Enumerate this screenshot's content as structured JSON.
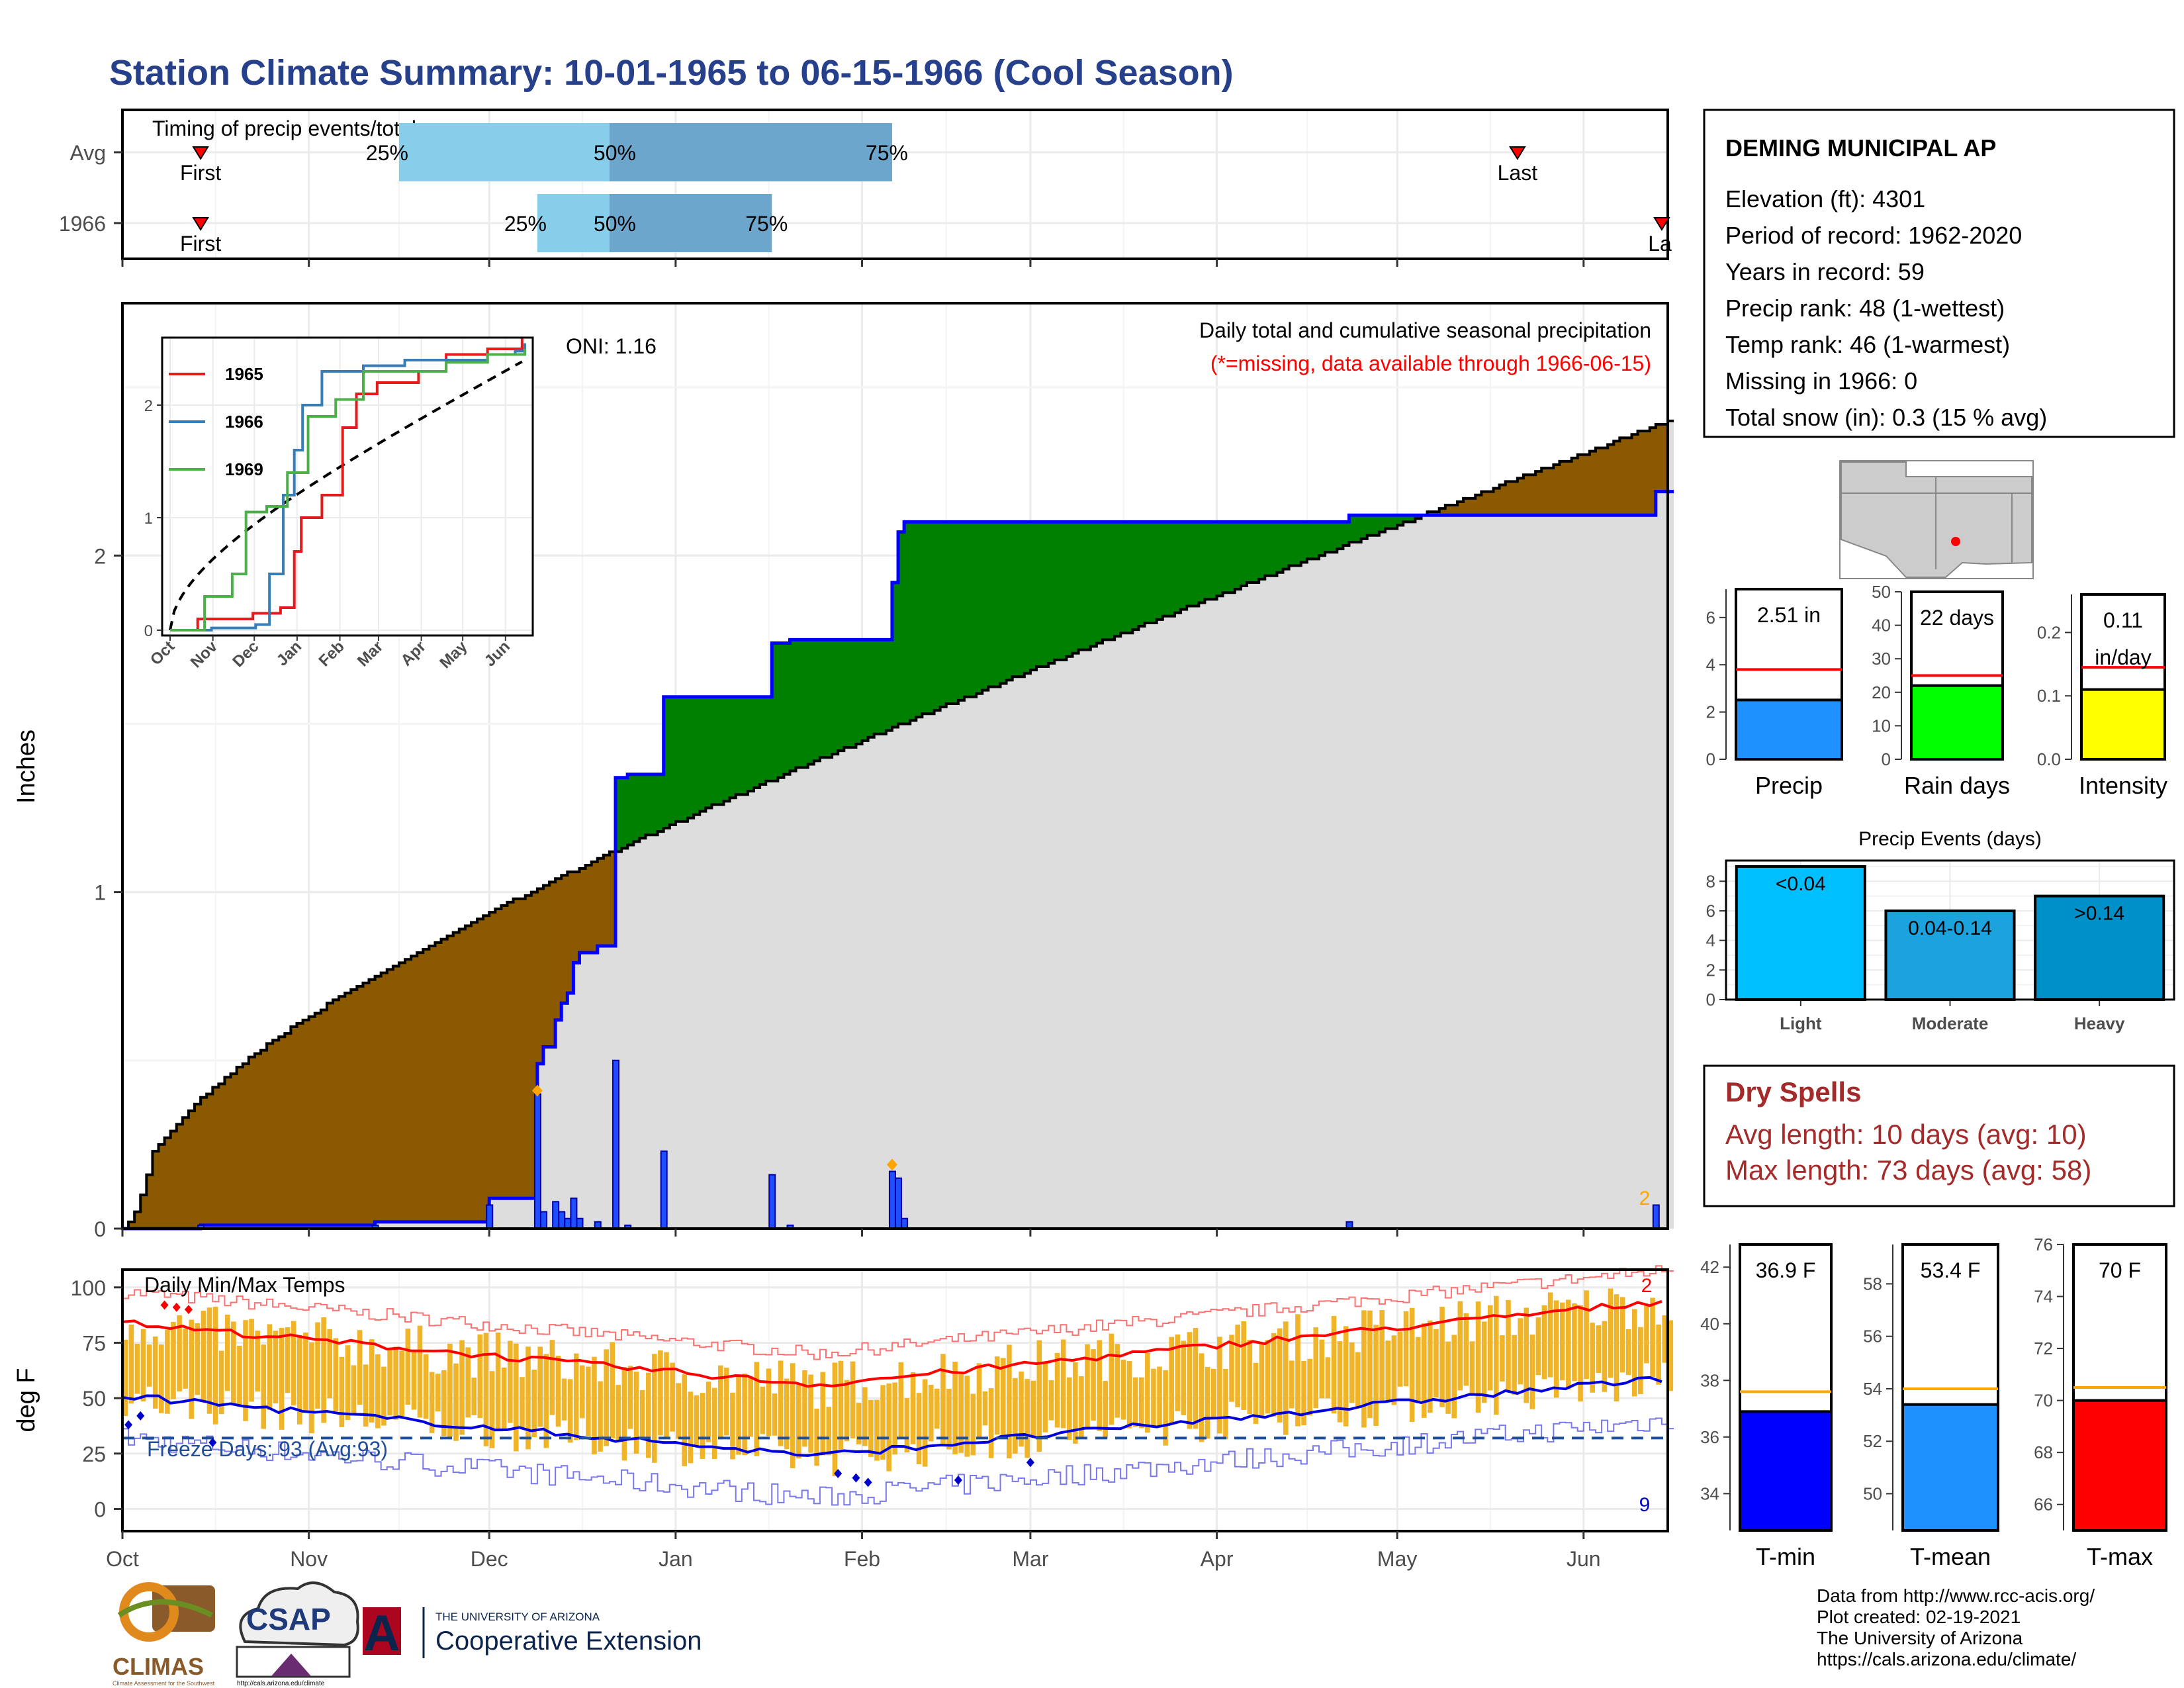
{
  "title": "Station Climate Summary: 10-01-1965 to 06-15-1966 (Cool Season)",
  "timing": {
    "title": "Timing of precip events/totals",
    "rows": [
      {
        "label": "Avg",
        "first_label": "First",
        "last_label": "Last",
        "first_date": "1965-10-14",
        "last_date": "1966-05-21",
        "p25": "1965-11-16",
        "p50": "1965-12-21",
        "p75": "1966-02-06",
        "p25_label": "25%",
        "p50_label": "50%",
        "p75_label": "75%"
      },
      {
        "label": "1966",
        "first_label": "First",
        "last_label": "La",
        "first_date": "1965-10-14",
        "last_date": "1966-06-14",
        "p25": "1965-12-09",
        "p50": "1965-12-21",
        "p75": "1966-01-17",
        "p25_label": "25%",
        "p50_label": "50%",
        "p75_label": "75%"
      }
    ]
  },
  "precip_panel": {
    "ylabel": "Inches",
    "yticks": [
      0,
      1,
      2
    ],
    "ylim": [
      0,
      2.75
    ],
    "oni": "ONI: 1.16",
    "note1": "Daily total and cumulative seasonal precipitation",
    "note2": "(*=missing, data available through 1966-06-15)",
    "corner_label": "2",
    "colors": {
      "above": "#008000",
      "below": "#8B5A00",
      "avg_fill": "#DDDDDD",
      "obs": "#0000FF",
      "bars": "#1E4FFF",
      "marker": "#FFA500"
    }
  },
  "inset": {
    "legend": [
      "1965",
      "1966",
      "1969"
    ],
    "legend_colors": [
      "#E41A1C",
      "#377EB8",
      "#4DAF4A"
    ],
    "months": [
      "Oct",
      "Nov",
      "Dec",
      "Jan",
      "Feb",
      "Mar",
      "Apr",
      "May",
      "Jun"
    ],
    "yticks": [
      0,
      1,
      2
    ],
    "ylim": [
      0,
      2.6
    ]
  },
  "temp_panel": {
    "ylabel": "deg F",
    "title": "Daily Min/Max Temps",
    "freeze_label": "Freeze Days: 93 (Avg:93)",
    "freeze_line": 32,
    "yticks": [
      0,
      25,
      50,
      75,
      100
    ],
    "ylim": [
      -10,
      108
    ],
    "corner_top": "2",
    "corner_bottom": "9",
    "colors": {
      "bars": "#F0B429",
      "avg_max": "#FF0000",
      "avg_min": "#0000DD",
      "rec_max": "#FF7070",
      "rec_min": "#7777EE",
      "freeze": "#1F4E9A"
    }
  },
  "x_months": [
    "Oct",
    "Nov",
    "Dec",
    "Jan",
    "Feb",
    "Mar",
    "Apr",
    "May",
    "Jun"
  ],
  "station": {
    "name": "DEMING MUNICIPAL AP",
    "lines": [
      "Elevation (ft): 4301",
      "Period of record: 1962-2020",
      "Years in record: 59",
      "Precip rank: 48 (1-wettest)",
      "Temp rank: 46 (1-warmest)",
      "Missing in 1966: 0",
      "Total snow (in): 0.3 (15 % avg)"
    ]
  },
  "summary_bars": [
    {
      "name": "Precip",
      "label": "2.51 in",
      "value": 2.51,
      "avg": 3.8,
      "ylim": [
        0,
        7.2
      ],
      "ticks": [
        0,
        2,
        4,
        6
      ],
      "color": "#1E90FF",
      "avg_color": "#FF0000"
    },
    {
      "name": "Rain days",
      "label": "22 days",
      "value": 22,
      "avg": 25,
      "ylim": [
        0,
        50
      ],
      "ticks": [
        0,
        10,
        20,
        30,
        40,
        50
      ],
      "color": "#00FF00",
      "avg_color": "#FF0000"
    },
    {
      "name": "Intensity",
      "label": "0.11 in/day",
      "label_lines": [
        "0.11",
        "in/day"
      ],
      "value": 0.11,
      "avg": 0.145,
      "ylim": [
        0,
        0.26
      ],
      "ticks": [
        "0.0",
        "0.1",
        "0.2"
      ],
      "tick_values": [
        0,
        0.1,
        0.2
      ],
      "color": "#FFFF00",
      "avg_color": "#FF0000"
    }
  ],
  "events": {
    "title": "Precip Events (days)",
    "ticks": [
      0,
      2,
      4,
      6,
      8
    ],
    "ylim": [
      0,
      9.4
    ],
    "bars": [
      {
        "name": "Light",
        "label": "<0.04",
        "value": 9,
        "color": "#00BFFF"
      },
      {
        "name": "Moderate",
        "label": "0.04-0.14",
        "value": 6,
        "color": "#1CA3DD"
      },
      {
        "name": "Heavy",
        "label": ">0.14",
        "value": 7,
        "color": "#0090C8"
      }
    ]
  },
  "dry_spells": {
    "title": "Dry Spells",
    "lines": [
      "Avg length: 10 days (avg: 10)",
      "Max length: 73 days (avg: 58)"
    ]
  },
  "temp_bars": [
    {
      "name": "T-min",
      "label": "36.9 F",
      "value": 36.9,
      "avg": 37.6,
      "ylim": [
        32.7,
        42.8
      ],
      "ticks": [
        34,
        36,
        38,
        40,
        42
      ],
      "color": "#0000FF",
      "avg_color": "#FFA500"
    },
    {
      "name": "T-mean",
      "label": "53.4 F",
      "value": 53.4,
      "avg": 54.0,
      "ylim": [
        48.6,
        59.5
      ],
      "ticks": [
        50,
        52,
        54,
        56,
        58
      ],
      "color": "#1E90FF",
      "avg_color": "#FFA500"
    },
    {
      "name": "T-max",
      "label": "70 F",
      "value": 70,
      "avg": 70.5,
      "ylim": [
        65.0,
        76.0
      ],
      "ticks": [
        66,
        68,
        70,
        72,
        74,
        76
      ],
      "color": "#FF0000",
      "avg_color": "#FFA500"
    }
  ],
  "footer": {
    "lines": [
      "Data from http://www.rcc-acis.org/",
      "Plot created: 02-19-2021",
      "The University of Arizona",
      "https://cals.arizona.edu/climate/"
    ],
    "logo_climas": "CLIMAS",
    "logo_climas_sub": "Climate Assessment for the Southwest",
    "logo_csap": "CSAP",
    "logo_csap_url": "http://cals.arizona.edu/climate",
    "ua_small": "THE UNIVERSITY OF ARIZONA",
    "ua_big": "Cooperative Extension",
    "ua_letter": "A"
  }
}
